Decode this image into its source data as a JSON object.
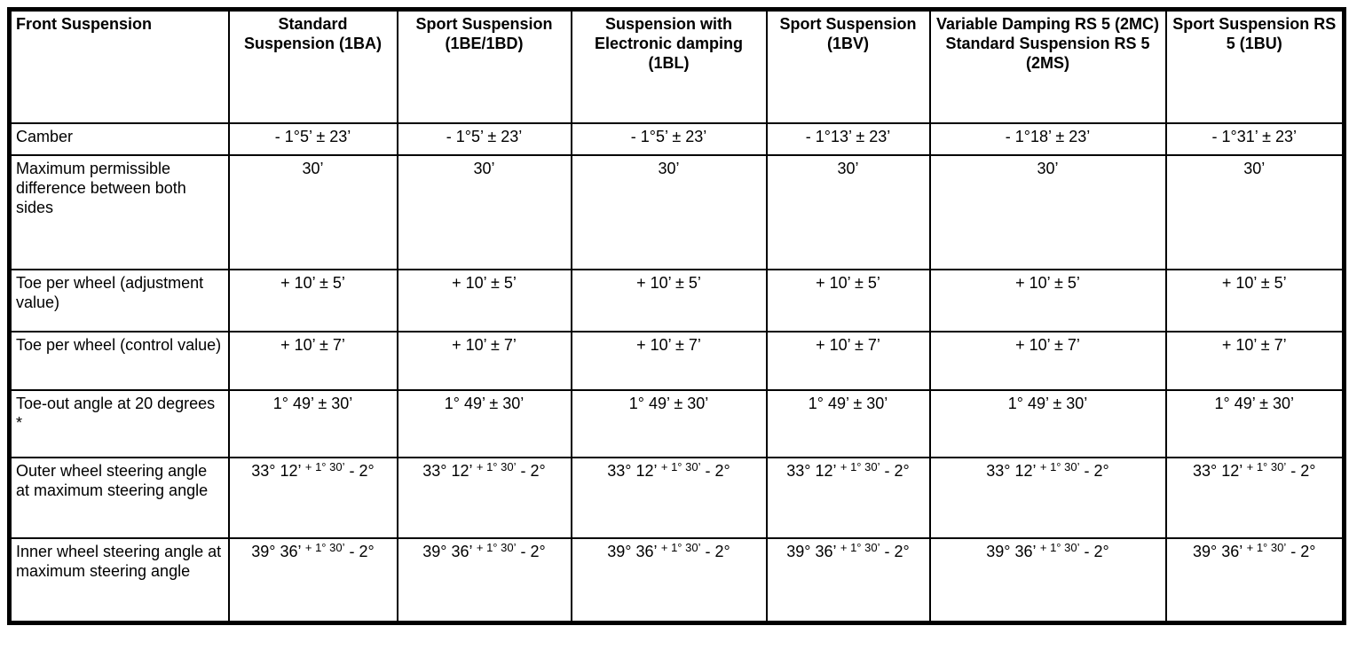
{
  "table": {
    "columns": [
      "Front Suspension",
      "Standard Suspension (1BA)",
      "Sport Suspension (1BE/1BD)",
      "Suspension with Electronic damping (1BL)",
      "Sport Suspension (1BV)",
      "Variable Damping RS 5 (2MC) Standard Suspension RS 5 (2MS)",
      "Sport Suspension RS 5 (1BU)"
    ],
    "rows": [
      {
        "label": "Camber",
        "values": [
          "- 1°5’ ± 23’",
          "- 1°5’ ± 23’",
          "- 1°5’ ± 23’",
          "- 1°13’ ± 23’",
          "- 1°18’ ± 23’",
          "- 1°31’ ± 23’"
        ]
      },
      {
        "label": "Maximum permissible difference between both sides",
        "values": [
          "30’",
          "30’",
          "30’",
          "30’",
          "30’",
          "30’"
        ]
      },
      {
        "label": "Toe per wheel (adjustment value)",
        "values": [
          "+ 10’ ± 5’",
          "+ 10’ ± 5’",
          "+ 10’ ± 5’",
          "+ 10’ ± 5’",
          "+ 10’ ± 5’",
          "+ 10’ ± 5’"
        ]
      },
      {
        "label": "Toe per wheel (control value)",
        "values": [
          "+ 10’ ± 7’",
          "+ 10’ ± 7’",
          "+ 10’ ± 7’",
          "+ 10’ ± 7’",
          "+ 10’ ± 7’",
          "+ 10’ ± 7’"
        ]
      },
      {
        "label": "Toe-out angle at 20 degrees *",
        "values": [
          "1° 49’ ± 30’",
          "1° 49’ ± 30’",
          "1° 49’ ± 30’",
          "1° 49’ ± 30’",
          "1° 49’ ± 30’",
          "1° 49’ ± 30’"
        ]
      },
      {
        "label": "Outer wheel steering angle at maximum steering angle",
        "values": [
          {
            "base": "33° 12’",
            "sup": "+ 1° 30’",
            "tail": "- 2°"
          },
          {
            "base": "33° 12’",
            "sup": "+ 1° 30’",
            "tail": "- 2°"
          },
          {
            "base": "33° 12’",
            "sup": "+ 1° 30’",
            "tail": "- 2°"
          },
          {
            "base": "33° 12’",
            "sup": "+ 1° 30’",
            "tail": "- 2°"
          },
          {
            "base": "33° 12’",
            "sup": "+ 1° 30’",
            "tail": "- 2°"
          },
          {
            "base": "33° 12’",
            "sup": "+ 1° 30’",
            "tail": "- 2°"
          }
        ]
      },
      {
        "label": "Inner wheel steering angle at maximum steering angle",
        "values": [
          {
            "base": "39° 36’",
            "sup": "+ 1° 30’",
            "tail": "- 2°"
          },
          {
            "base": "39° 36’",
            "sup": "+ 1° 30’",
            "tail": "- 2°"
          },
          {
            "base": "39° 36’",
            "sup": "+ 1° 30’",
            "tail": "- 2°"
          },
          {
            "base": "39° 36’",
            "sup": "+ 1° 30’",
            "tail": "- 2°"
          },
          {
            "base": "39° 36’",
            "sup": "+ 1° 30’",
            "tail": "- 2°"
          },
          {
            "base": "39° 36’",
            "sup": "+ 1° 30’",
            "tail": "- 2°"
          }
        ]
      }
    ]
  }
}
